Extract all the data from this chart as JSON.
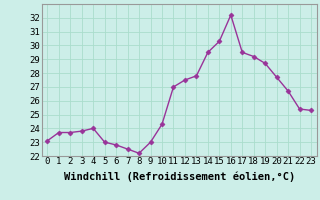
{
  "x": [
    0,
    1,
    2,
    3,
    4,
    5,
    6,
    7,
    8,
    9,
    10,
    11,
    12,
    13,
    14,
    15,
    16,
    17,
    18,
    19,
    20,
    21,
    22,
    23
  ],
  "y": [
    23.1,
    23.7,
    23.7,
    23.8,
    24.0,
    23.0,
    22.8,
    22.5,
    22.2,
    23.0,
    24.3,
    27.0,
    27.5,
    27.8,
    29.5,
    30.3,
    32.2,
    29.5,
    29.2,
    28.7,
    27.7,
    26.7,
    25.4,
    25.3
  ],
  "line_color": "#993399",
  "marker": "D",
  "marker_size": 2.5,
  "linewidth": 1.0,
  "bg_color": "#cceee8",
  "grid_color": "#aaddcc",
  "xlabel": "Windchill (Refroidissement éolien,°C)",
  "xlabel_fontsize": 7.5,
  "tick_fontsize": 6.5,
  "ylim": [
    22,
    33
  ],
  "yticks": [
    22,
    23,
    24,
    25,
    26,
    27,
    28,
    29,
    30,
    31,
    32
  ],
  "xticks": [
    0,
    1,
    2,
    3,
    4,
    5,
    6,
    7,
    8,
    9,
    10,
    11,
    12,
    13,
    14,
    15,
    16,
    17,
    18,
    19,
    20,
    21,
    22,
    23
  ],
  "xtick_labels": [
    "0",
    "1",
    "2",
    "3",
    "4",
    "5",
    "6",
    "7",
    "8",
    "9",
    "10",
    "11",
    "12",
    "13",
    "14",
    "15",
    "16",
    "17",
    "18",
    "19",
    "20",
    "21",
    "22",
    "23"
  ]
}
